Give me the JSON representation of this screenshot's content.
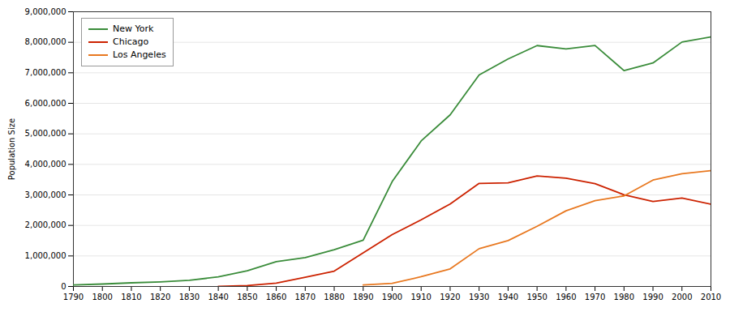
{
  "chart_data": {
    "type": "line",
    "ylabel": "Population Size",
    "series": [
      {
        "name": "New York",
        "color": "#3A8C3A",
        "x": [
          1790,
          1800,
          1810,
          1820,
          1830,
          1840,
          1850,
          1860,
          1870,
          1880,
          1890,
          1900,
          1910,
          1920,
          1930,
          1940,
          1950,
          1960,
          1970,
          1980,
          1990,
          2000,
          2010
        ],
        "values": [
          49000,
          79000,
          120000,
          152000,
          203000,
          313000,
          515000,
          814000,
          943000,
          1206000,
          1515000,
          3437000,
          4767000,
          5621000,
          6930000,
          7455000,
          7892000,
          7782000,
          7895000,
          7072000,
          7323000,
          8008000,
          8175000
        ]
      },
      {
        "name": "Chicago",
        "color": "#CC2200",
        "x": [
          1840,
          1850,
          1860,
          1870,
          1880,
          1890,
          1900,
          1910,
          1920,
          1930,
          1940,
          1950,
          1960,
          1970,
          1980,
          1990,
          2000,
          2010
        ],
        "values": [
          4000,
          30000,
          109000,
          299000,
          503000,
          1100000,
          1698575,
          2185000,
          2702000,
          3376000,
          3397000,
          3621000,
          3550000,
          3367000,
          3005000,
          2784000,
          2896000,
          2696000
        ]
      },
      {
        "name": "Los Angeles",
        "color": "#E87820",
        "x": [
          1890,
          1900,
          1910,
          1920,
          1930,
          1940,
          1950,
          1960,
          1970,
          1980,
          1990,
          2000,
          2010
        ],
        "values": [
          50000,
          102000,
          319000,
          577000,
          1238000,
          1504000,
          1970000,
          2479000,
          2812000,
          2967000,
          3485000,
          3694000,
          3793000
        ]
      }
    ],
    "xlim": [
      1790,
      2010
    ],
    "ylim": [
      0,
      9000000
    ],
    "xticks": [
      1790,
      1800,
      1810,
      1820,
      1830,
      1840,
      1850,
      1860,
      1870,
      1880,
      1890,
      1900,
      1910,
      1920,
      1930,
      1940,
      1950,
      1960,
      1970,
      1980,
      1990,
      2000,
      2010
    ],
    "yticks": [
      0,
      {
        "value": 1000000,
        "label": "1,000,000"
      },
      {
        "value": 2000000,
        "label": "2,000,000"
      },
      {
        "value": 3000000,
        "label": "3,000,000"
      },
      {
        "value": 4000000,
        "label": "4,000,000"
      },
      {
        "value": 5000000,
        "label": "5,000,000"
      },
      {
        "value": 6000000,
        "label": "6,000,000"
      },
      {
        "value": 7000000,
        "label": "7,000,000"
      },
      {
        "value": 8000000,
        "label": "8,000,000"
      },
      {
        "value": 9000000,
        "label": "9,000,000"
      }
    ],
    "grid": "y",
    "legend": "upper left"
  }
}
